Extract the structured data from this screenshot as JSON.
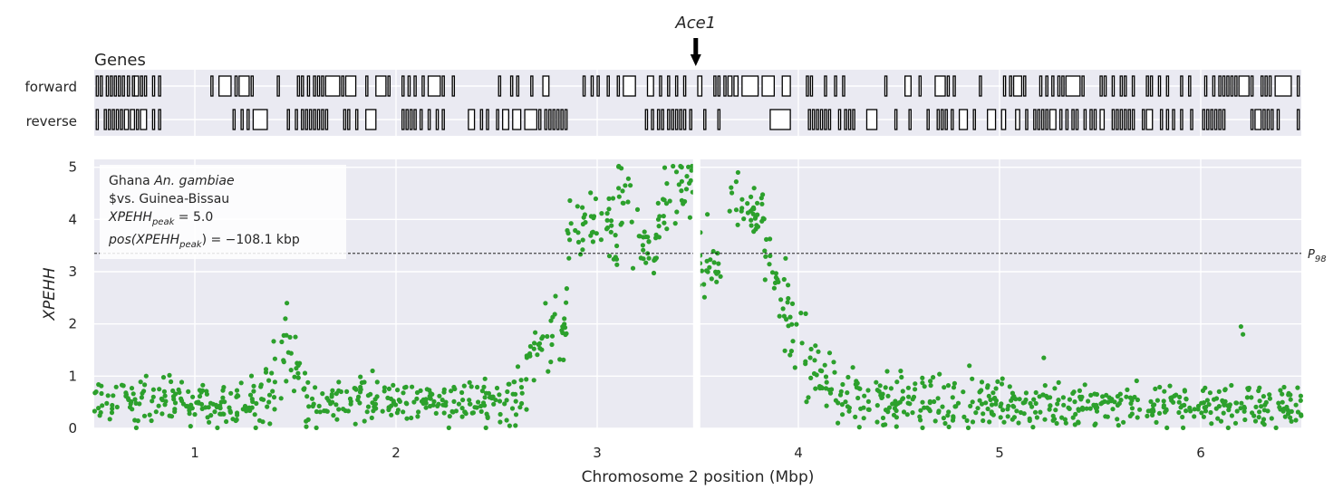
{
  "chart_data": [
    {
      "type": "genes",
      "title": "Genes",
      "strands": [
        "forward",
        "reverse"
      ],
      "xlim": [
        0.5,
        6.5
      ],
      "annotation": {
        "label": "Ace1",
        "x": 3.49
      },
      "colors": {
        "background": "#eaeaf2",
        "grid": "#ffffff",
        "gene_fill": "#ffffff",
        "gene_edge": "#000000"
      },
      "forward_genes": [
        [
          0.51,
          0.52
        ],
        [
          0.53,
          0.54
        ],
        [
          0.56,
          0.57
        ],
        [
          0.58,
          0.59
        ],
        [
          0.6,
          0.61
        ],
        [
          0.62,
          0.63
        ],
        [
          0.64,
          0.65
        ],
        [
          0.665,
          0.675
        ],
        [
          0.69,
          0.7
        ],
        [
          0.7,
          0.72
        ],
        [
          0.73,
          0.74
        ],
        [
          0.75,
          0.76
        ],
        [
          0.79,
          0.8
        ],
        [
          0.82,
          0.83
        ],
        [
          1.08,
          1.09
        ],
        [
          1.12,
          1.18
        ],
        [
          1.2,
          1.21
        ],
        [
          1.22,
          1.27
        ],
        [
          1.28,
          1.29
        ],
        [
          1.41,
          1.42
        ],
        [
          1.51,
          1.52
        ],
        [
          1.53,
          1.54
        ],
        [
          1.56,
          1.57
        ],
        [
          1.59,
          1.6
        ],
        [
          1.61,
          1.62
        ],
        [
          1.63,
          1.64
        ],
        [
          1.65,
          1.72
        ],
        [
          1.73,
          1.74
        ],
        [
          1.75,
          1.8
        ],
        [
          1.85,
          1.86
        ],
        [
          1.9,
          1.95
        ],
        [
          1.96,
          1.97
        ],
        [
          2.03,
          2.04
        ],
        [
          2.06,
          2.07
        ],
        [
          2.09,
          2.1
        ],
        [
          2.13,
          2.14
        ],
        [
          2.16,
          2.22
        ],
        [
          2.23,
          2.24
        ],
        [
          2.28,
          2.29
        ],
        [
          2.51,
          2.52
        ],
        [
          2.57,
          2.58
        ],
        [
          2.6,
          2.61
        ],
        [
          2.67,
          2.68
        ],
        [
          2.73,
          2.76
        ],
        [
          2.93,
          2.94
        ],
        [
          2.97,
          2.98
        ],
        [
          3.0,
          3.01
        ],
        [
          3.05,
          3.06
        ],
        [
          3.1,
          3.11
        ],
        [
          3.13,
          3.19
        ],
        [
          3.25,
          3.28
        ],
        [
          3.31,
          3.32
        ],
        [
          3.35,
          3.36
        ],
        [
          3.39,
          3.4
        ],
        [
          3.43,
          3.44
        ],
        [
          3.5,
          3.52
        ],
        [
          3.58,
          3.59
        ],
        [
          3.6,
          3.61
        ],
        [
          3.63,
          3.64
        ],
        [
          3.65,
          3.67
        ],
        [
          3.68,
          3.7
        ],
        [
          3.72,
          3.8
        ],
        [
          3.82,
          3.88
        ],
        [
          3.92,
          3.96
        ],
        [
          4.04,
          4.05
        ],
        [
          4.06,
          4.07
        ],
        [
          4.13,
          4.14
        ],
        [
          4.18,
          4.19
        ],
        [
          4.22,
          4.23
        ],
        [
          4.43,
          4.44
        ],
        [
          4.53,
          4.56
        ],
        [
          4.6,
          4.61
        ],
        [
          4.68,
          4.73
        ],
        [
          4.74,
          4.75
        ],
        [
          4.77,
          4.78
        ],
        [
          4.9,
          4.91
        ],
        [
          5.02,
          5.03
        ],
        [
          5.05,
          5.06
        ],
        [
          5.07,
          5.11
        ],
        [
          5.12,
          5.13
        ],
        [
          5.2,
          5.21
        ],
        [
          5.23,
          5.24
        ],
        [
          5.26,
          5.27
        ],
        [
          5.29,
          5.3
        ],
        [
          5.31,
          5.32
        ],
        [
          5.33,
          5.4
        ],
        [
          5.41,
          5.42
        ],
        [
          5.5,
          5.51
        ],
        [
          5.52,
          5.53
        ],
        [
          5.56,
          5.57
        ],
        [
          5.6,
          5.61
        ],
        [
          5.62,
          5.63
        ],
        [
          5.66,
          5.67
        ],
        [
          5.73,
          5.74
        ],
        [
          5.75,
          5.76
        ],
        [
          5.79,
          5.8
        ],
        [
          5.83,
          5.84
        ],
        [
          5.9,
          5.91
        ],
        [
          5.94,
          5.95
        ],
        [
          6.02,
          6.03
        ],
        [
          6.06,
          6.07
        ],
        [
          6.09,
          6.1
        ],
        [
          6.11,
          6.12
        ],
        [
          6.13,
          6.14
        ],
        [
          6.15,
          6.16
        ],
        [
          6.17,
          6.18
        ],
        [
          6.19,
          6.24
        ],
        [
          6.25,
          6.26
        ],
        [
          6.3,
          6.31
        ],
        [
          6.32,
          6.33
        ],
        [
          6.34,
          6.35
        ],
        [
          6.37,
          6.45
        ],
        [
          6.48,
          6.49
        ]
      ],
      "reverse_genes": [
        [
          0.51,
          0.52
        ],
        [
          0.55,
          0.56
        ],
        [
          0.57,
          0.58
        ],
        [
          0.59,
          0.6
        ],
        [
          0.61,
          0.62
        ],
        [
          0.63,
          0.64
        ],
        [
          0.65,
          0.67
        ],
        [
          0.68,
          0.7
        ],
        [
          0.71,
          0.72
        ],
        [
          0.73,
          0.76
        ],
        [
          0.79,
          0.8
        ],
        [
          0.82,
          0.83
        ],
        [
          1.19,
          1.2
        ],
        [
          1.23,
          1.24
        ],
        [
          1.26,
          1.27
        ],
        [
          1.29,
          1.36
        ],
        [
          1.46,
          1.47
        ],
        [
          1.5,
          1.51
        ],
        [
          1.53,
          1.54
        ],
        [
          1.55,
          1.56
        ],
        [
          1.57,
          1.58
        ],
        [
          1.59,
          1.6
        ],
        [
          1.61,
          1.62
        ],
        [
          1.63,
          1.64
        ],
        [
          1.65,
          1.66
        ],
        [
          1.74,
          1.75
        ],
        [
          1.76,
          1.77
        ],
        [
          1.8,
          1.81
        ],
        [
          1.85,
          1.9
        ],
        [
          2.03,
          2.04
        ],
        [
          2.05,
          2.06
        ],
        [
          2.07,
          2.08
        ],
        [
          2.09,
          2.1
        ],
        [
          2.12,
          2.13
        ],
        [
          2.16,
          2.17
        ],
        [
          2.2,
          2.21
        ],
        [
          2.23,
          2.24
        ],
        [
          2.36,
          2.39
        ],
        [
          2.42,
          2.43
        ],
        [
          2.45,
          2.46
        ],
        [
          2.5,
          2.51
        ],
        [
          2.53,
          2.56
        ],
        [
          2.58,
          2.62
        ],
        [
          2.64,
          2.7
        ],
        [
          2.71,
          2.72
        ],
        [
          2.74,
          2.75
        ],
        [
          2.76,
          2.77
        ],
        [
          2.78,
          2.79
        ],
        [
          2.8,
          2.81
        ],
        [
          2.82,
          2.83
        ],
        [
          2.84,
          2.85
        ],
        [
          3.24,
          3.25
        ],
        [
          3.27,
          3.28
        ],
        [
          3.3,
          3.31
        ],
        [
          3.32,
          3.33
        ],
        [
          3.35,
          3.36
        ],
        [
          3.37,
          3.38
        ],
        [
          3.39,
          3.4
        ],
        [
          3.41,
          3.42
        ],
        [
          3.43,
          3.44
        ],
        [
          3.46,
          3.47
        ],
        [
          3.53,
          3.54
        ],
        [
          3.6,
          3.61
        ],
        [
          3.86,
          3.96
        ],
        [
          4.05,
          4.06
        ],
        [
          4.07,
          4.08
        ],
        [
          4.09,
          4.1
        ],
        [
          4.11,
          4.12
        ],
        [
          4.13,
          4.14
        ],
        [
          4.15,
          4.16
        ],
        [
          4.2,
          4.21
        ],
        [
          4.23,
          4.24
        ],
        [
          4.25,
          4.26
        ],
        [
          4.27,
          4.28
        ],
        [
          4.34,
          4.39
        ],
        [
          4.48,
          4.49
        ],
        [
          4.55,
          4.56
        ],
        [
          4.64,
          4.65
        ],
        [
          4.69,
          4.7
        ],
        [
          4.71,
          4.72
        ],
        [
          4.73,
          4.74
        ],
        [
          4.76,
          4.77
        ],
        [
          4.8,
          4.84
        ],
        [
          4.87,
          4.88
        ],
        [
          4.94,
          4.98
        ],
        [
          5.01,
          5.03
        ],
        [
          5.08,
          5.1
        ],
        [
          5.13,
          5.14
        ],
        [
          5.17,
          5.18
        ],
        [
          5.19,
          5.2
        ],
        [
          5.21,
          5.22
        ],
        [
          5.23,
          5.24
        ],
        [
          5.25,
          5.28
        ],
        [
          5.3,
          5.31
        ],
        [
          5.33,
          5.34
        ],
        [
          5.36,
          5.37
        ],
        [
          5.38,
          5.39
        ],
        [
          5.42,
          5.43
        ],
        [
          5.45,
          5.46
        ],
        [
          5.47,
          5.48
        ],
        [
          5.5,
          5.52
        ],
        [
          5.56,
          5.57
        ],
        [
          5.58,
          5.59
        ],
        [
          5.6,
          5.61
        ],
        [
          5.62,
          5.63
        ],
        [
          5.64,
          5.65
        ],
        [
          5.66,
          5.67
        ],
        [
          5.71,
          5.72
        ],
        [
          5.73,
          5.76
        ],
        [
          5.8,
          5.81
        ],
        [
          5.83,
          5.84
        ],
        [
          5.86,
          5.87
        ],
        [
          5.9,
          5.91
        ],
        [
          5.95,
          5.96
        ],
        [
          6.01,
          6.02
        ],
        [
          6.03,
          6.04
        ],
        [
          6.05,
          6.06
        ],
        [
          6.07,
          6.08
        ],
        [
          6.09,
          6.1
        ],
        [
          6.11,
          6.12
        ],
        [
          6.25,
          6.26
        ],
        [
          6.27,
          6.3
        ],
        [
          6.31,
          6.32
        ],
        [
          6.33,
          6.34
        ],
        [
          6.35,
          6.36
        ],
        [
          6.38,
          6.39
        ],
        [
          6.48,
          6.49
        ]
      ]
    },
    {
      "type": "scatter",
      "xlabel": "Chromosome 2 position (Mbp)",
      "ylabel": "XPEHH",
      "xlim": [
        0.5,
        6.5
      ],
      "ylim": [
        0,
        5.15
      ],
      "xticks": [
        1,
        2,
        3,
        4,
        5,
        6
      ],
      "yticks": [
        0,
        1,
        2,
        3,
        4,
        5
      ],
      "grid": true,
      "legend": {
        "placement": "upper-left",
        "lines": [
          "Ghana An. gambiae",
          "$vs. Guinea-Bissau",
          "XPEHH_peak = 5.0",
          "pos(XPEHH_peak) = -108.1 kbp"
        ],
        "line1_prefix": "Ghana ",
        "line1_species": "An. gambiae",
        "line2": "$vs. Guinea-Bissau",
        "line3_main": "XPEHH",
        "line3_sub": "peak",
        "line3_tail": " = 5.0",
        "line4_head": "pos(XPEHH",
        "line4_sub": "peak",
        "line4_tail": ") = −108.1 kbp"
      },
      "threshold": {
        "value": 3.35,
        "label_main": "P",
        "label_sub": "98"
      },
      "gap": 3.49,
      "colors": {
        "points": "#2ca02c",
        "background": "#eaeaf2",
        "grid": "#ffffff",
        "threshold": "#000000"
      },
      "segments": [
        {
          "x": [
            0.5,
            1.3
          ],
          "y": [
            0.5,
            0.5
          ],
          "noise": 0.22
        },
        {
          "x": [
            1.3,
            1.38
          ],
          "y": [
            0.55,
            0.8
          ],
          "noise": 0.3
        },
        {
          "x": [
            1.38,
            1.46
          ],
          "y": [
            0.8,
            1.7
          ],
          "noise": 0.35
        },
        {
          "x": [
            1.46,
            1.55
          ],
          "y": [
            1.4,
            0.8
          ],
          "noise": 0.3
        },
        {
          "x": [
            1.55,
            2.5
          ],
          "y": [
            0.5,
            0.55
          ],
          "noise": 0.22
        },
        {
          "x": [
            2.5,
            2.65
          ],
          "y": [
            0.5,
            0.75
          ],
          "noise": 0.28
        },
        {
          "x": [
            2.65,
            2.85
          ],
          "y": [
            1.2,
            2.1
          ],
          "noise": 0.35
        },
        {
          "x": [
            2.85,
            3.0
          ],
          "y": [
            3.7,
            4.0
          ],
          "noise": 0.3
        },
        {
          "x": [
            3.0,
            3.1
          ],
          "y": [
            3.9,
            3.5
          ],
          "noise": 0.35
        },
        {
          "x": [
            3.1,
            3.17
          ],
          "y": [
            4.3,
            4.7
          ],
          "noise": 0.35
        },
        {
          "x": [
            3.17,
            3.3
          ],
          "y": [
            3.5,
            3.3
          ],
          "noise": 0.3
        },
        {
          "x": [
            3.3,
            3.48
          ],
          "y": [
            4.0,
            4.7
          ],
          "noise": 0.4
        },
        {
          "x": [
            3.5,
            3.62
          ],
          "y": [
            3.3,
            3.1
          ],
          "noise": 0.35
        },
        {
          "x": [
            3.65,
            3.8
          ],
          "y": [
            4.5,
            4.1
          ],
          "noise": 0.25
        },
        {
          "x": [
            3.8,
            3.9
          ],
          "y": [
            3.9,
            3.0
          ],
          "noise": 0.4
        },
        {
          "x": [
            3.9,
            4.05
          ],
          "y": [
            2.6,
            1.2
          ],
          "noise": 0.45
        },
        {
          "x": [
            4.05,
            4.25
          ],
          "y": [
            1.2,
            0.5
          ],
          "noise": 0.25
        },
        {
          "x": [
            4.25,
            5.0
          ],
          "y": [
            0.55,
            0.5
          ],
          "noise": 0.25
        },
        {
          "x": [
            5.0,
            6.5
          ],
          "y": [
            0.45,
            0.45
          ],
          "noise": 0.22
        }
      ],
      "peaks": [
        [
          1.45,
          2.1
        ],
        [
          1.5,
          1.75
        ],
        [
          3.12,
          4.98
        ],
        [
          3.42,
          5.0
        ],
        [
          3.7,
          4.9
        ],
        [
          3.78,
          4.6
        ],
        [
          4.85,
          1.2
        ],
        [
          5.22,
          1.35
        ],
        [
          6.2,
          1.95
        ],
        [
          6.21,
          1.8
        ]
      ]
    }
  ]
}
